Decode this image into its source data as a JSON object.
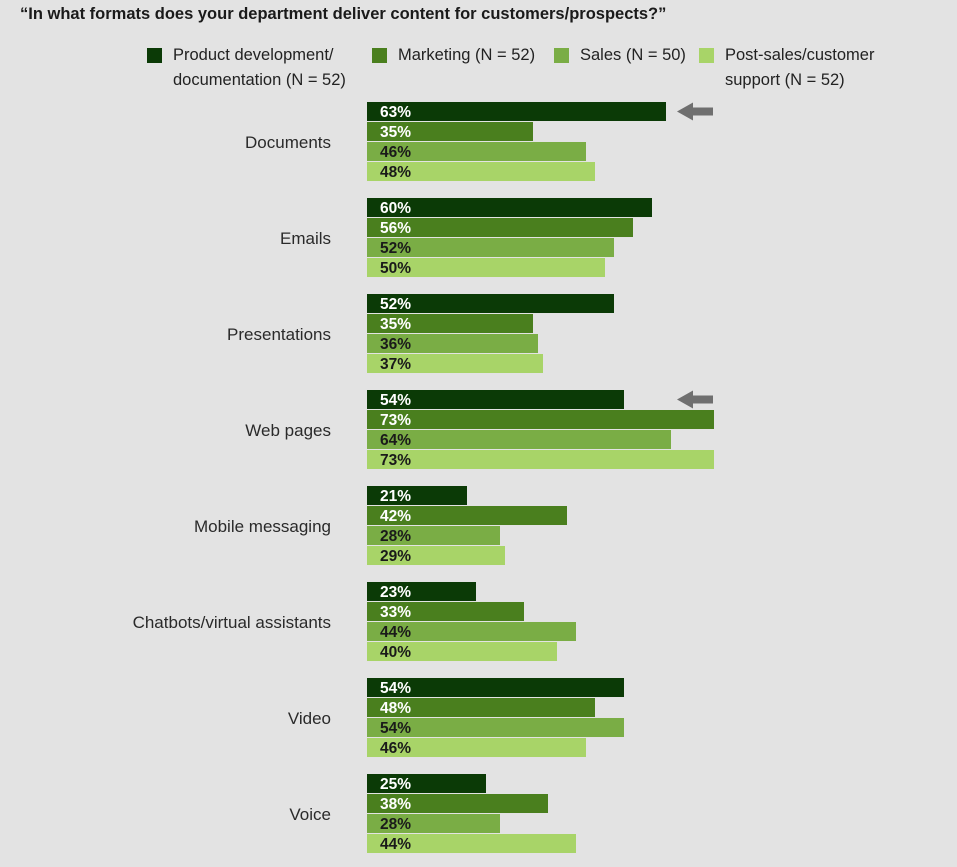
{
  "chart_data": {
    "type": "bar",
    "orientation": "horizontal",
    "title": "“In what formats does your department deliver content for customers/prospects?”",
    "categories": [
      "Documents",
      "Emails",
      "Presentations",
      "Web pages",
      "Mobile messaging",
      "Chatbots/virtual assistants",
      "Video",
      "Voice"
    ],
    "series": [
      {
        "name": "Product development/ documentation (N = 52)",
        "color": "#0b3a06",
        "label_color": "#ffffff",
        "values": [
          63,
          60,
          52,
          54,
          21,
          23,
          54,
          25
        ]
      },
      {
        "name": "Marketing (N = 52)",
        "color": "#4a7f1e",
        "label_color": "#ffffff",
        "values": [
          35,
          56,
          35,
          73,
          42,
          33,
          48,
          38
        ]
      },
      {
        "name": "Sales (N = 50)",
        "color": "#7aad45",
        "label_color": "#1a1a1a",
        "values": [
          46,
          52,
          36,
          64,
          28,
          44,
          54,
          28
        ]
      },
      {
        "name": "Post-sales/customer support (N = 52)",
        "color": "#a8d468",
        "label_color": "#1a1a1a",
        "values": [
          48,
          50,
          37,
          73,
          29,
          40,
          46,
          44
        ]
      }
    ],
    "value_suffix": "%",
    "xlim": [
      0,
      73
    ],
    "grid": false,
    "legend_position": "top",
    "highlights": [
      {
        "category": "Documents",
        "series": "Product development/ documentation (N = 52)",
        "marker": "arrow"
      },
      {
        "category": "Web pages",
        "series": "Product development/ documentation (N = 52)",
        "marker": "arrow"
      }
    ]
  },
  "legend": [
    {
      "line1": "Product development/",
      "line2": "documentation (N = 52)"
    },
    {
      "line1": "Marketing (N = 52)",
      "line2": ""
    },
    {
      "line1": "Sales (N = 50)",
      "line2": ""
    },
    {
      "line1": "Post-sales/customer",
      "line2": "support (N = 52)"
    }
  ]
}
